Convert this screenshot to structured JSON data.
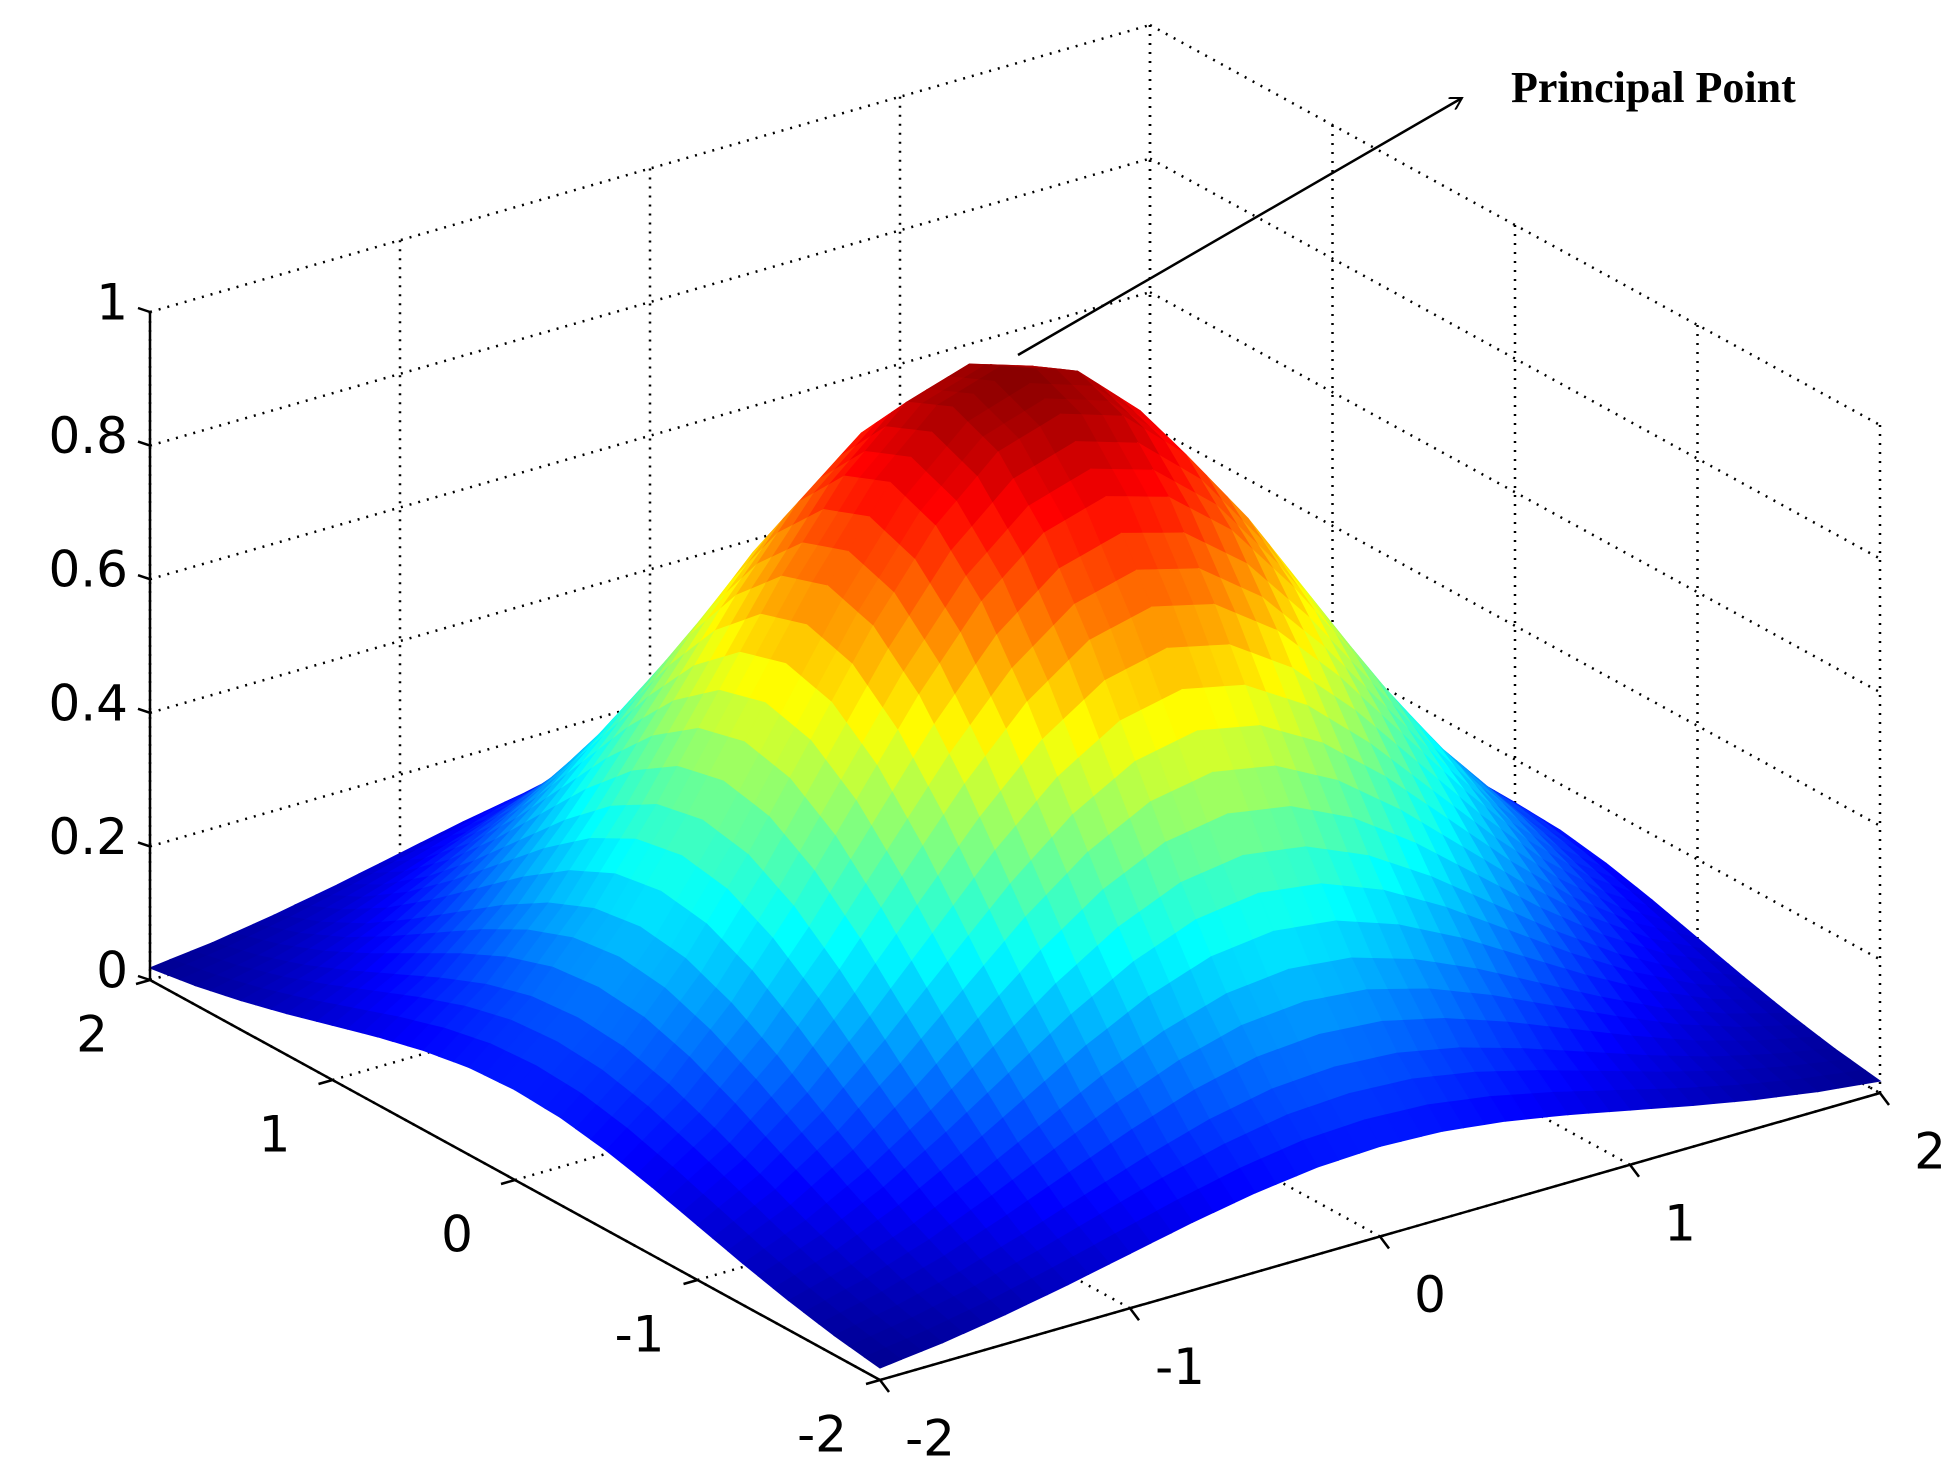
{
  "chart_data": {
    "type": "surface",
    "colormap": "jet",
    "grid": true,
    "x": [
      -2,
      -1.75,
      -1.5,
      -1.25,
      -1,
      -0.75,
      -0.5,
      -0.25,
      0,
      0.25,
      0.5,
      0.75,
      1,
      1.25,
      1.5,
      1.75,
      2
    ],
    "y": [
      -2,
      -1.75,
      -1.5,
      -1.25,
      -1,
      -0.75,
      -0.5,
      -0.25,
      0,
      0.25,
      0.5,
      0.75,
      1,
      1.25,
      1.5,
      1.75,
      2
    ],
    "z": [
      [
        0.018,
        0.029,
        0.044,
        0.062,
        0.082,
        0.102,
        0.119,
        0.131,
        0.135,
        0.131,
        0.119,
        0.102,
        0.082,
        0.062,
        0.044,
        0.029,
        0.018
      ],
      [
        0.029,
        0.047,
        0.07,
        0.099,
        0.131,
        0.163,
        0.191,
        0.21,
        0.216,
        0.21,
        0.191,
        0.163,
        0.131,
        0.099,
        0.07,
        0.047,
        0.029
      ],
      [
        0.044,
        0.07,
        0.105,
        0.149,
        0.197,
        0.245,
        0.286,
        0.315,
        0.325,
        0.315,
        0.286,
        0.245,
        0.197,
        0.149,
        0.105,
        0.07,
        0.044
      ],
      [
        0.062,
        0.099,
        0.149,
        0.21,
        0.278,
        0.346,
        0.404,
        0.444,
        0.458,
        0.444,
        0.404,
        0.346,
        0.278,
        0.21,
        0.149,
        0.099,
        0.062
      ],
      [
        0.082,
        0.131,
        0.197,
        0.278,
        0.368,
        0.458,
        0.535,
        0.588,
        0.607,
        0.588,
        0.535,
        0.458,
        0.368,
        0.278,
        0.197,
        0.131,
        0.082
      ],
      [
        0.102,
        0.163,
        0.245,
        0.346,
        0.458,
        0.57,
        0.666,
        0.732,
        0.755,
        0.732,
        0.666,
        0.57,
        0.458,
        0.346,
        0.245,
        0.163,
        0.102
      ],
      [
        0.119,
        0.191,
        0.286,
        0.404,
        0.535,
        0.666,
        0.779,
        0.855,
        0.883,
        0.855,
        0.779,
        0.666,
        0.535,
        0.404,
        0.286,
        0.191,
        0.119
      ],
      [
        0.131,
        0.21,
        0.315,
        0.444,
        0.588,
        0.732,
        0.855,
        0.939,
        0.969,
        0.939,
        0.855,
        0.732,
        0.588,
        0.444,
        0.315,
        0.21,
        0.131
      ],
      [
        0.135,
        0.216,
        0.325,
        0.458,
        0.607,
        0.755,
        0.883,
        0.969,
        1,
        0.969,
        0.883,
        0.755,
        0.607,
        0.458,
        0.325,
        0.216,
        0.135
      ],
      [
        0.131,
        0.21,
        0.315,
        0.444,
        0.588,
        0.732,
        0.855,
        0.939,
        0.969,
        0.939,
        0.855,
        0.732,
        0.588,
        0.444,
        0.315,
        0.21,
        0.131
      ],
      [
        0.119,
        0.191,
        0.286,
        0.404,
        0.535,
        0.666,
        0.779,
        0.855,
        0.883,
        0.855,
        0.779,
        0.666,
        0.535,
        0.404,
        0.286,
        0.191,
        0.119
      ],
      [
        0.102,
        0.163,
        0.245,
        0.346,
        0.458,
        0.57,
        0.666,
        0.732,
        0.755,
        0.732,
        0.666,
        0.57,
        0.458,
        0.346,
        0.245,
        0.163,
        0.102
      ],
      [
        0.082,
        0.131,
        0.197,
        0.278,
        0.368,
        0.458,
        0.535,
        0.588,
        0.607,
        0.588,
        0.535,
        0.458,
        0.368,
        0.278,
        0.197,
        0.131,
        0.082
      ],
      [
        0.062,
        0.099,
        0.149,
        0.21,
        0.278,
        0.346,
        0.404,
        0.444,
        0.458,
        0.444,
        0.404,
        0.346,
        0.278,
        0.21,
        0.149,
        0.099,
        0.062
      ],
      [
        0.044,
        0.07,
        0.105,
        0.149,
        0.197,
        0.245,
        0.286,
        0.315,
        0.325,
        0.315,
        0.286,
        0.245,
        0.197,
        0.149,
        0.105,
        0.07,
        0.044
      ],
      [
        0.029,
        0.047,
        0.07,
        0.099,
        0.131,
        0.163,
        0.191,
        0.21,
        0.216,
        0.21,
        0.191,
        0.163,
        0.131,
        0.099,
        0.07,
        0.047,
        0.029
      ],
      [
        0.018,
        0.029,
        0.044,
        0.062,
        0.082,
        0.102,
        0.119,
        0.131,
        0.135,
        0.131,
        0.119,
        0.102,
        0.082,
        0.062,
        0.044,
        0.029,
        0.018
      ]
    ],
    "xlim": [
      -2,
      2
    ],
    "ylim": [
      -2,
      2
    ],
    "zlim": [
      0,
      1
    ],
    "xticks": [
      -2,
      -1,
      0,
      1,
      2
    ],
    "yticks": [
      -2,
      -1,
      0,
      1,
      2
    ],
    "zticks": [
      0,
      0.2,
      0.4,
      0.6,
      0.8,
      1
    ],
    "annotations": [
      {
        "text": "Principal Point"
      }
    ]
  }
}
